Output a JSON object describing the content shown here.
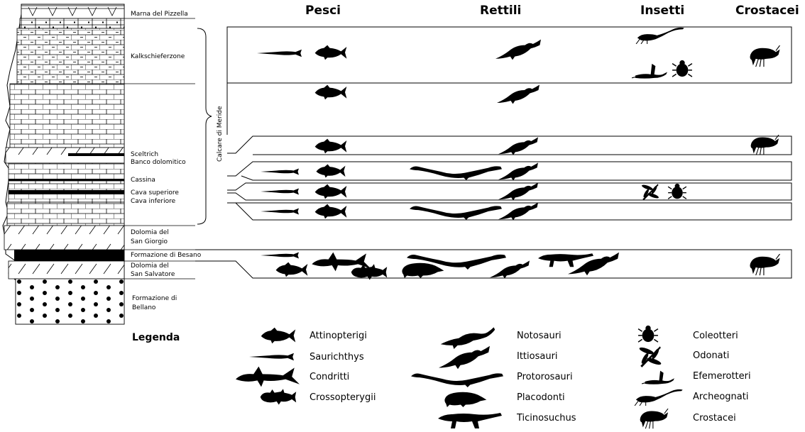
{
  "headers": {
    "pesci": "Pesci",
    "rettili": "Rettili",
    "insetti": "Insetti",
    "crostacei": "Crostacei"
  },
  "bracket_label": "Calcare di Meride",
  "formations": {
    "marna": "Marna del Pizzella",
    "kalk": "Kalkschieferzone",
    "sceltrich": "Sceltrich",
    "banco": "Banco dolomitico",
    "cassina": "Cassina",
    "cava_sup": "Cava superiore",
    "cava_inf": "Cava inferiore",
    "dolomia_sg_1": "Dolomia del",
    "dolomia_sg_2": "San Giorgio",
    "besano": "Formazione di Besano",
    "dolomia_ss_1": "Dolomia del",
    "dolomia_ss_2": "San Salvatore",
    "bellano_1": "Formazione di",
    "bellano_2": "Bellano"
  },
  "legend": {
    "title": "Legenda",
    "pesci": [
      "Attinopterigi",
      "Saurichthys",
      "Condritti",
      "Crossopterygii"
    ],
    "rettili": [
      "Notosauri",
      "Ittiosauri",
      "Protorosauri",
      "Placodonti",
      "Ticinosuchus"
    ],
    "insetti": [
      "Coleotteri",
      "Odonati",
      "Efemerotteri",
      "Archeognati",
      "Crostacei"
    ]
  },
  "icons": {
    "attinopterigi": "fish-silhouette-icon",
    "saurichthys": "long-fish-silhouette-icon",
    "condritti": "shark-silhouette-icon",
    "crossopterygii": "lobe-fin-fish-silhouette-icon",
    "notosauri": "nothosaur-silhouette-icon",
    "ittiosauri": "ichthyosaur-silhouette-icon",
    "protorosauri": "protorosaur-silhouette-icon",
    "placodonti": "placodont-silhouette-icon",
    "ticinosuchus": "ticinosuchus-silhouette-icon",
    "coleotteri": "beetle-silhouette-icon",
    "odonati": "dragonfly-silhouette-icon",
    "efemerotteri": "mayfly-silhouette-icon",
    "archeognati": "bristletail-silhouette-icon",
    "crostacei": "shrimp-silhouette-icon"
  },
  "colors": {
    "ink": "#000000",
    "paper": "#ffffff"
  }
}
